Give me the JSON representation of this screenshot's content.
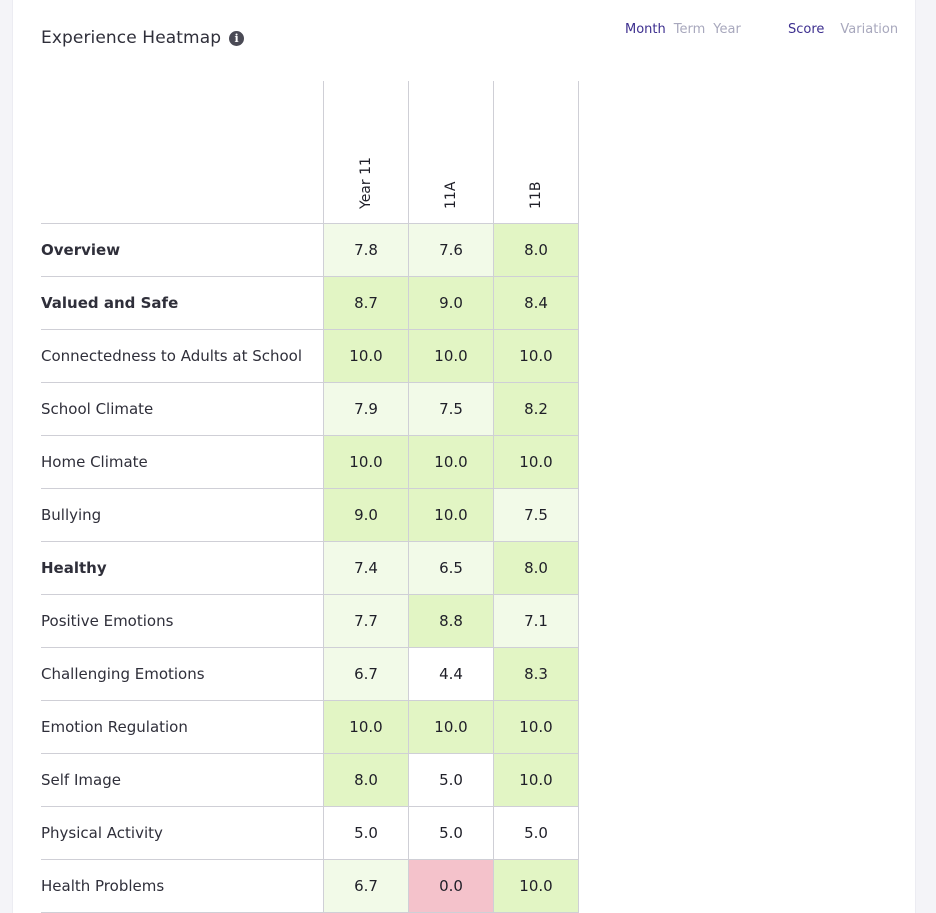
{
  "title": "Experience Heatmap",
  "info_icon": "info-icon",
  "period_toggle": [
    "Month",
    "Term",
    "Year"
  ],
  "period_active": "Month",
  "metric_toggle": [
    "Score",
    "Variation"
  ],
  "metric_active": "Score",
  "columns": [
    "Year 11",
    "11A",
    "11B"
  ],
  "colors": {
    "high": "#e2f5c4",
    "mid": "#f2fae8",
    "low": "#ffffff",
    "bad": "#f4c2cb",
    "accent": "#3d2f8f"
  },
  "rows": [
    {
      "label": "Overview",
      "bold": true,
      "values": [
        "7.8",
        "7.6",
        "8.0"
      ],
      "shades": [
        "mid",
        "mid",
        "high"
      ]
    },
    {
      "label": "Valued and Safe",
      "bold": true,
      "values": [
        "8.7",
        "9.0",
        "8.4"
      ],
      "shades": [
        "high",
        "high",
        "high"
      ]
    },
    {
      "label": "Connectedness to Adults at School",
      "bold": false,
      "values": [
        "10.0",
        "10.0",
        "10.0"
      ],
      "shades": [
        "high",
        "high",
        "high"
      ]
    },
    {
      "label": "School Climate",
      "bold": false,
      "values": [
        "7.9",
        "7.5",
        "8.2"
      ],
      "shades": [
        "mid",
        "mid",
        "high"
      ]
    },
    {
      "label": "Home Climate",
      "bold": false,
      "values": [
        "10.0",
        "10.0",
        "10.0"
      ],
      "shades": [
        "high",
        "high",
        "high"
      ]
    },
    {
      "label": "Bullying",
      "bold": false,
      "values": [
        "9.0",
        "10.0",
        "7.5"
      ],
      "shades": [
        "high",
        "high",
        "mid"
      ]
    },
    {
      "label": "Healthy",
      "bold": true,
      "values": [
        "7.4",
        "6.5",
        "8.0"
      ],
      "shades": [
        "mid",
        "mid",
        "high"
      ]
    },
    {
      "label": "Positive Emotions",
      "bold": false,
      "values": [
        "7.7",
        "8.8",
        "7.1"
      ],
      "shades": [
        "mid",
        "high",
        "mid"
      ]
    },
    {
      "label": "Challenging Emotions",
      "bold": false,
      "values": [
        "6.7",
        "4.4",
        "8.3"
      ],
      "shades": [
        "mid",
        "low",
        "high"
      ]
    },
    {
      "label": "Emotion Regulation",
      "bold": false,
      "values": [
        "10.0",
        "10.0",
        "10.0"
      ],
      "shades": [
        "high",
        "high",
        "high"
      ]
    },
    {
      "label": "Self Image",
      "bold": false,
      "values": [
        "8.0",
        "5.0",
        "10.0"
      ],
      "shades": [
        "high",
        "low",
        "high"
      ]
    },
    {
      "label": "Physical Activity",
      "bold": false,
      "values": [
        "5.0",
        "5.0",
        "5.0"
      ],
      "shades": [
        "low",
        "low",
        "low"
      ]
    },
    {
      "label": "Health Problems",
      "bold": false,
      "values": [
        "6.7",
        "0.0",
        "10.0"
      ],
      "shades": [
        "mid",
        "bad",
        "high"
      ]
    }
  ]
}
